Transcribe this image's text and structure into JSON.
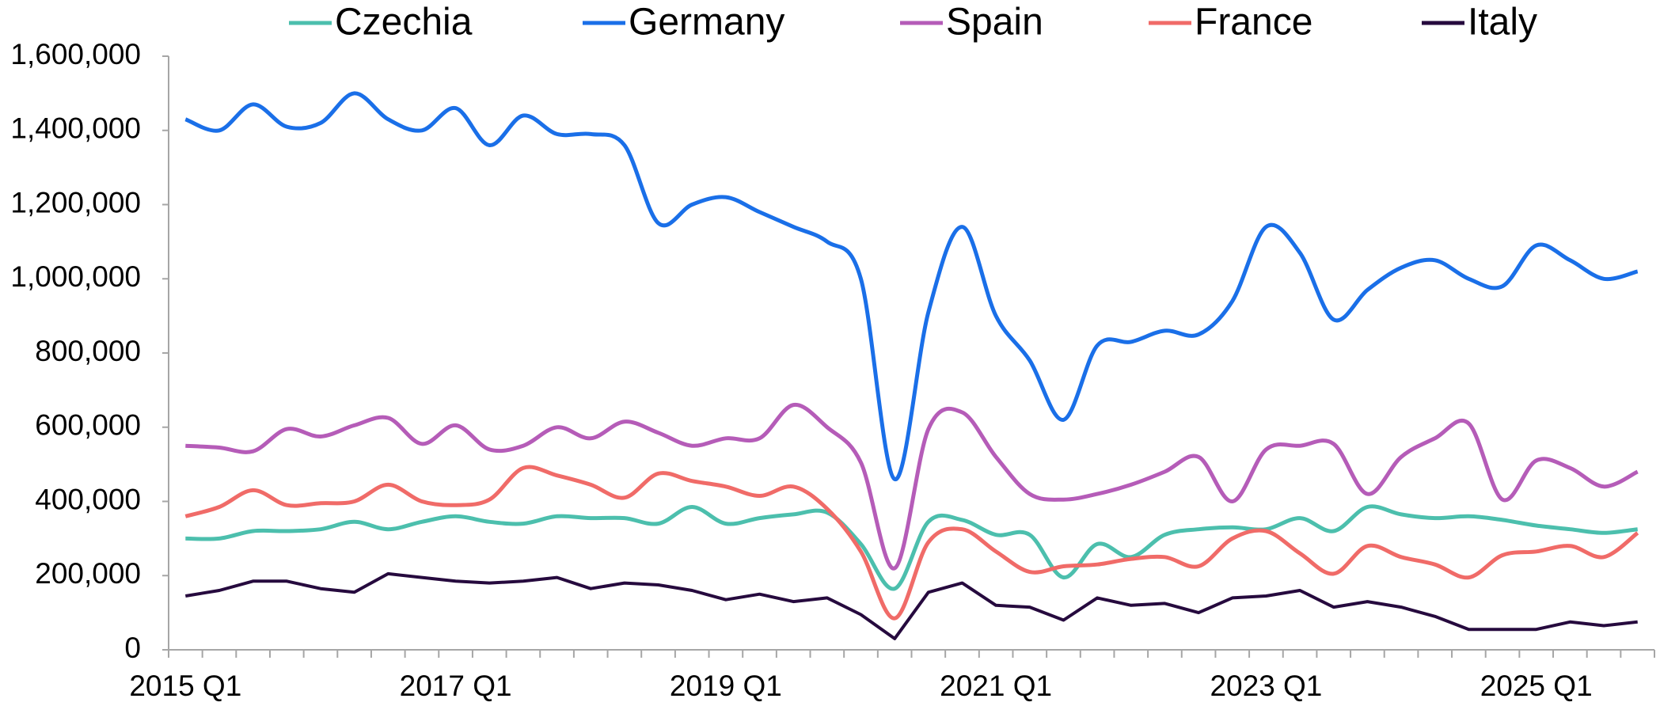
{
  "chart_data": {
    "type": "line",
    "categories": [
      "2015 Q1",
      null,
      null,
      null,
      null,
      null,
      null,
      null,
      "2017 Q1",
      null,
      null,
      null,
      null,
      null,
      null,
      null,
      "2019 Q1",
      null,
      null,
      null,
      null,
      null,
      null,
      null,
      "2021 Q1",
      null,
      null,
      null,
      null,
      null,
      null,
      null,
      "2023 Q1",
      null,
      null,
      null,
      null,
      null,
      null,
      null,
      "2025 Q1",
      null,
      null,
      null
    ],
    "series": [
      {
        "name": "Czechia",
        "color": "#4cbfad",
        "smooth": true,
        "values": [
          300000,
          300000,
          320000,
          320000,
          325000,
          345000,
          325000,
          345000,
          360000,
          345000,
          340000,
          360000,
          355000,
          355000,
          340000,
          385000,
          340000,
          355000,
          365000,
          370000,
          285000,
          165000,
          345000,
          350000,
          310000,
          310000,
          195000,
          285000,
          250000,
          310000,
          325000,
          330000,
          325000,
          355000,
          320000,
          385000,
          365000,
          355000,
          360000,
          350000,
          335000,
          325000,
          315000,
          325000
        ]
      },
      {
        "name": "Germany",
        "color": "#1a6fe8",
        "smooth": true,
        "values": [
          1430000,
          1400000,
          1470000,
          1410000,
          1420000,
          1500000,
          1430000,
          1400000,
          1460000,
          1360000,
          1440000,
          1390000,
          1390000,
          1360000,
          1150000,
          1200000,
          1220000,
          1180000,
          1140000,
          1100000,
          1000000,
          460000,
          910000,
          1140000,
          900000,
          780000,
          620000,
          820000,
          830000,
          860000,
          850000,
          940000,
          1140000,
          1070000,
          890000,
          970000,
          1030000,
          1050000,
          1000000,
          980000,
          1090000,
          1050000,
          1000000,
          1020000
        ]
      },
      {
        "name": "Spain",
        "color": "#b55cb8",
        "smooth": true,
        "values": [
          550000,
          545000,
          535000,
          595000,
          575000,
          605000,
          625000,
          555000,
          605000,
          540000,
          550000,
          600000,
          570000,
          615000,
          585000,
          550000,
          570000,
          570000,
          660000,
          600000,
          505000,
          220000,
          595000,
          640000,
          520000,
          420000,
          405000,
          420000,
          445000,
          480000,
          520000,
          400000,
          540000,
          550000,
          555000,
          420000,
          520000,
          570000,
          610000,
          405000,
          510000,
          490000,
          440000,
          480000
        ]
      },
      {
        "name": "France",
        "color": "#f06b68",
        "smooth": true,
        "values": [
          360000,
          385000,
          430000,
          390000,
          395000,
          400000,
          445000,
          400000,
          390000,
          405000,
          490000,
          470000,
          445000,
          410000,
          475000,
          455000,
          440000,
          415000,
          440000,
          380000,
          265000,
          85000,
          290000,
          325000,
          265000,
          210000,
          225000,
          230000,
          245000,
          250000,
          225000,
          300000,
          320000,
          260000,
          205000,
          280000,
          250000,
          230000,
          195000,
          255000,
          265000,
          280000,
          250000,
          315000
        ]
      },
      {
        "name": "Italy",
        "color": "#260a3e",
        "smooth": false,
        "values": [
          145000,
          160000,
          185000,
          185000,
          165000,
          155000,
          205000,
          195000,
          185000,
          180000,
          185000,
          195000,
          165000,
          180000,
          175000,
          160000,
          135000,
          150000,
          130000,
          140000,
          95000,
          30000,
          155000,
          180000,
          120000,
          115000,
          80000,
          140000,
          120000,
          125000,
          100000,
          140000,
          145000,
          160000,
          115000,
          130000,
          115000,
          90000,
          55000,
          55000,
          55000,
          75000,
          65000,
          75000
        ]
      }
    ],
    "ylim": [
      0,
      1600000
    ],
    "yticks": [
      0,
      {
        "value": 200000,
        "label": "200,000"
      },
      {
        "value": 400000,
        "label": "400,000"
      },
      {
        "value": 600000,
        "label": "600,000"
      },
      {
        "value": 800000,
        "label": "800,000"
      },
      {
        "value": 1000000,
        "label": "1,000,000"
      },
      {
        "value": 1200000,
        "label": "1,200,000"
      },
      {
        "value": 1400000,
        "label": "1,400,000"
      },
      {
        "value": 1600000,
        "label": "1,600,000"
      }
    ],
    "grid": false,
    "legend": "top"
  }
}
